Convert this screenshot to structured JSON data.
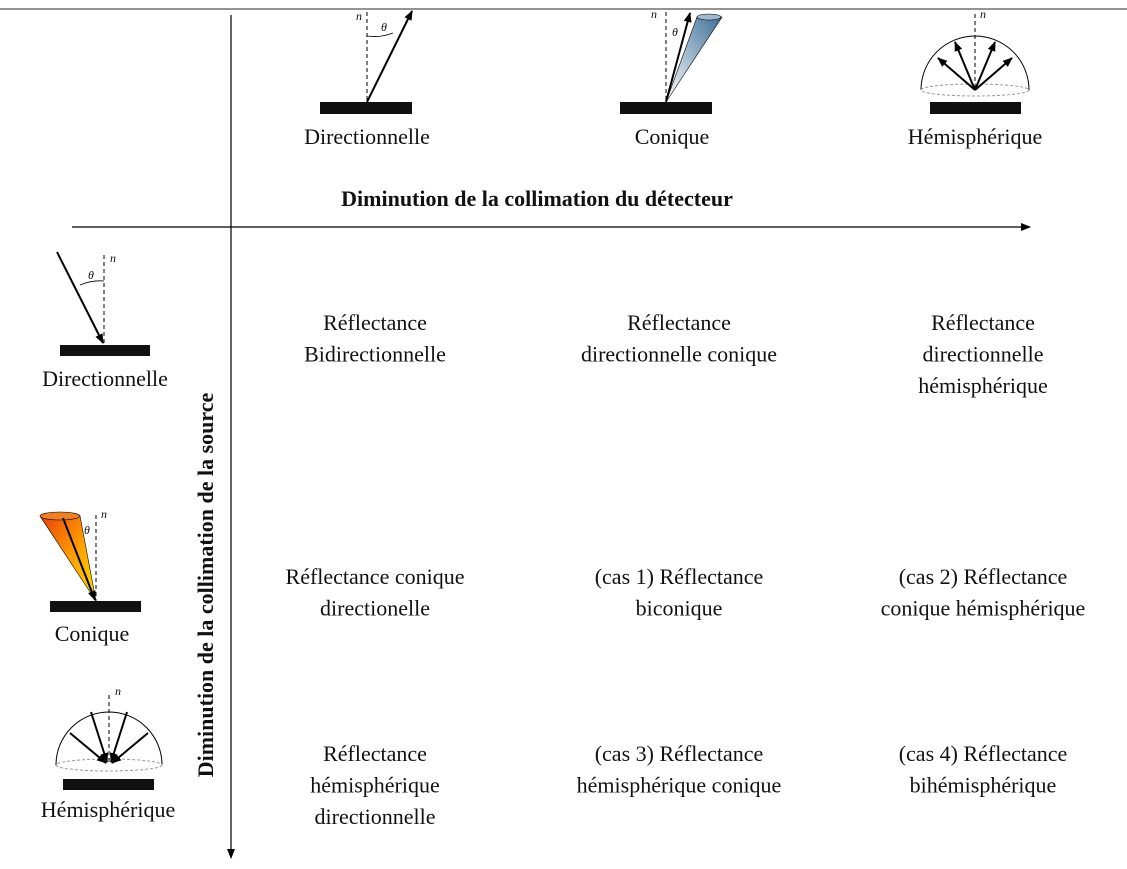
{
  "symbols": {
    "normal": "n⃗",
    "angle": "θ"
  },
  "columns_axis": {
    "title": "Diminution de la collimation du détecteur",
    "labels": [
      "Directionnelle",
      "Conique",
      "Hémisphérique"
    ]
  },
  "rows_axis": {
    "title": "Diminution de la collimation de la source",
    "labels": [
      "Directionnelle",
      "Conique",
      "Hémisphérique"
    ]
  },
  "cells": [
    [
      [
        "Réflectance",
        "Bidirectionnelle"
      ],
      [
        "Réflectance",
        "directionnelle conique"
      ],
      [
        "Réflectance",
        "directionnelle",
        "hémisphérique"
      ]
    ],
    [
      [
        "Réflectance conique",
        "directionelle"
      ],
      [
        "(cas 1) Réflectance",
        "biconique"
      ],
      [
        "(cas 2) Réflectance",
        "conique hémisphérique"
      ]
    ],
    [
      [
        "Réflectance",
        "hémisphérique",
        "directionnelle"
      ],
      [
        "(cas 3) Réflectance",
        "hémisphérique conique"
      ],
      [
        "(cas 4) Réflectance",
        "bihémisphérique"
      ]
    ]
  ]
}
